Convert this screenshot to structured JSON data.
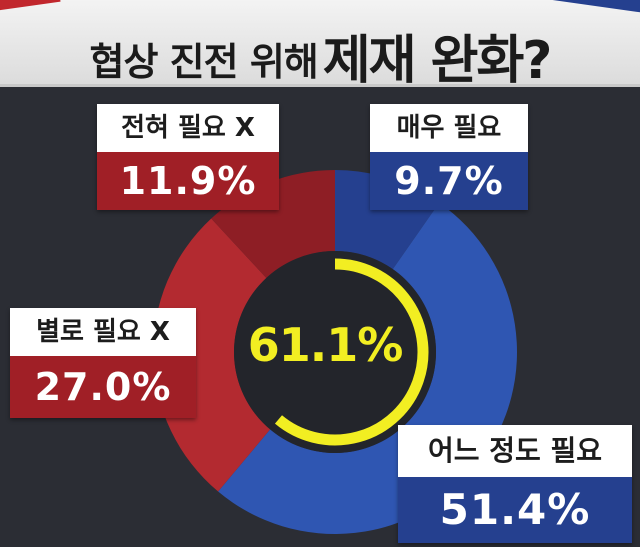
{
  "header": {
    "title_part1": "협상 진전 위해",
    "title_part2": "제재 완화?"
  },
  "chart_data": {
    "type": "pie",
    "variant": "donut",
    "categories": [
      "매우 필요",
      "어느 정도 필요",
      "별로 필요 X",
      "전혀 필요 X"
    ],
    "values": [
      9.7,
      51.4,
      27.0,
      11.9
    ],
    "value_labels": [
      "9.7%",
      "51.4%",
      "27.0%",
      "11.9%"
    ],
    "colors": [
      "#25408f",
      "#2f56b2",
      "#b32a30",
      "#8e1e25"
    ],
    "center_label": "61.1%",
    "center_highlight_value": 61.1,
    "center_highlight_color": "#f2ee22"
  }
}
